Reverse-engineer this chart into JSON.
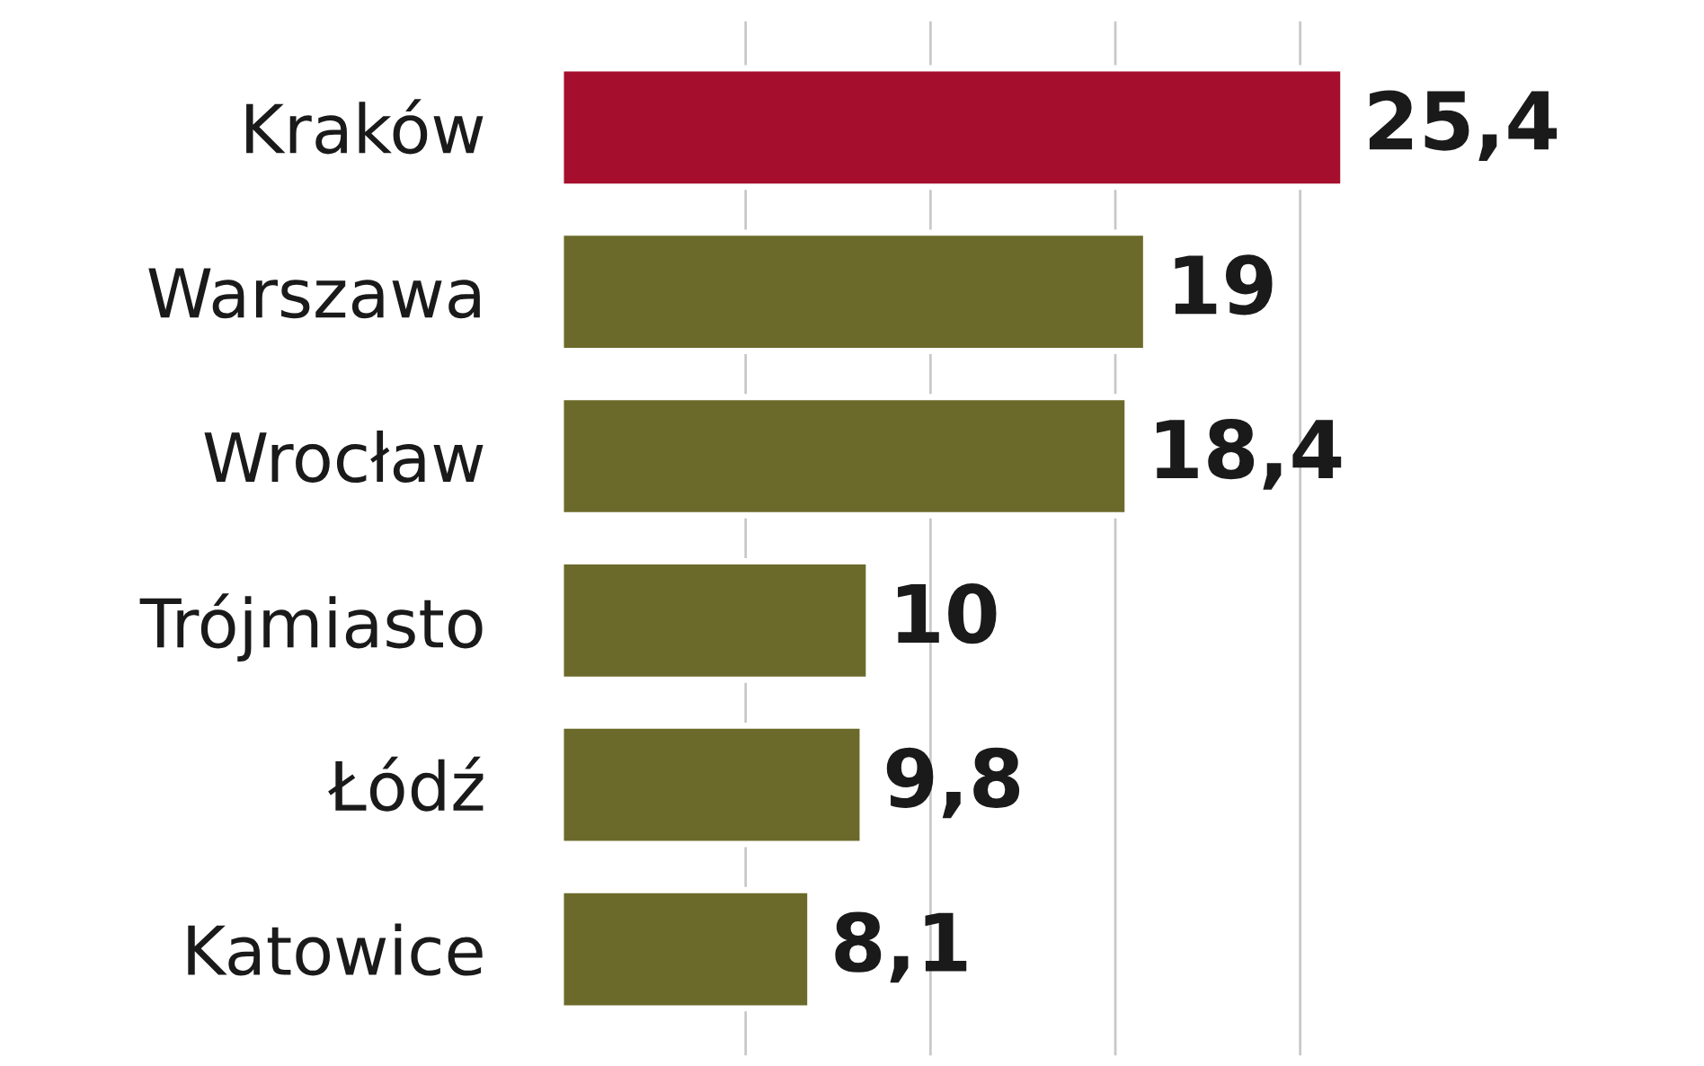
{
  "chart_data": {
    "type": "bar",
    "orientation": "horizontal",
    "categories": [
      "Kraków",
      "Warszawa",
      "Wrocław",
      "Trójmiasto",
      "Łódź",
      "Katowice"
    ],
    "values": [
      25.4,
      19,
      18.4,
      10,
      9.8,
      8.1
    ],
    "value_labels": [
      "25,4",
      "19",
      "18,4",
      "10",
      "9,8",
      "8,1"
    ],
    "colors": [
      "#a50f2d",
      "#6b6a2a",
      "#6b6a2a",
      "#6b6a2a",
      "#6b6a2a",
      "#6b6a2a"
    ],
    "xticks": [
      {
        "value": 6,
        "label": null
      },
      {
        "value": 12,
        "label": null
      },
      {
        "value": 18,
        "label": null
      },
      {
        "value": 24,
        "label": null
      }
    ],
    "tick_labels": "y",
    "grid": "x",
    "legend": false
  }
}
